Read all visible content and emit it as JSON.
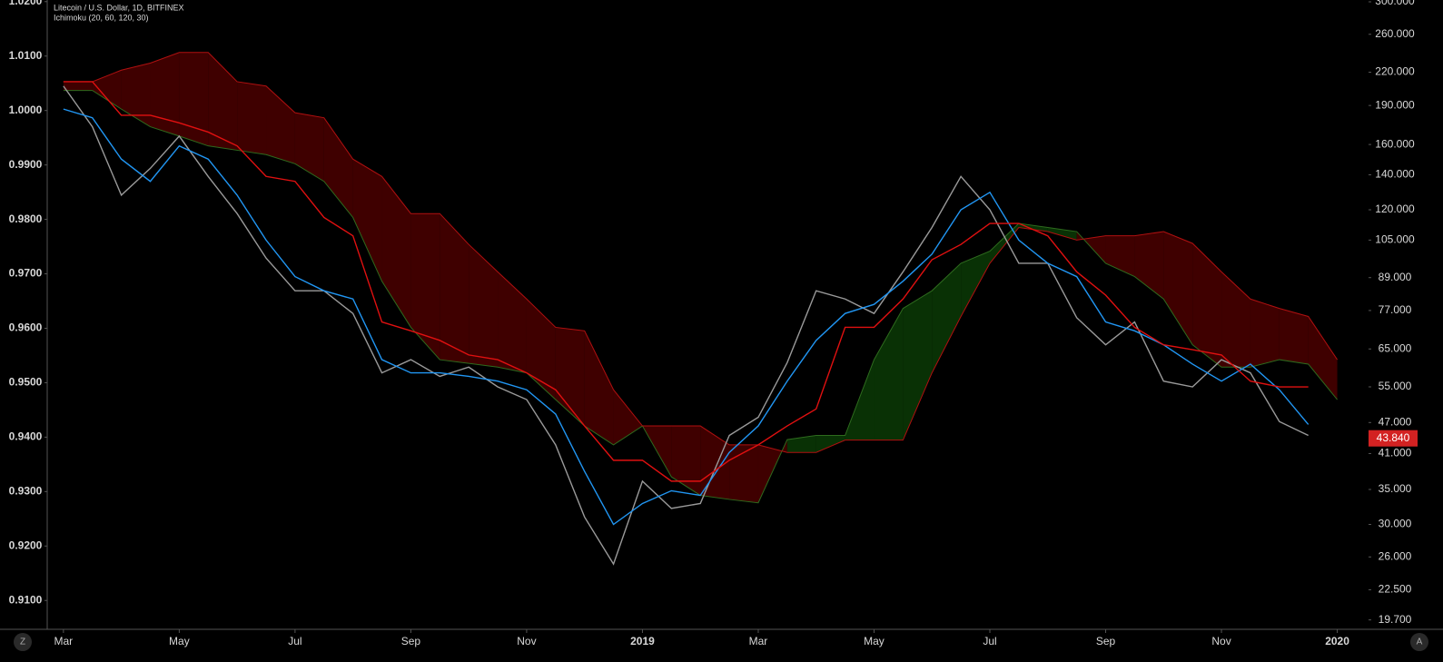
{
  "chart_data": {
    "type": "ichimoku",
    "title": "Litecoin / U.S. Dollar, 1D, BITFINEX",
    "subtitle": "Ichimoku (20, 60, 120, 30)",
    "x": [
      0,
      0.5,
      1,
      1.5,
      2,
      2.5,
      3,
      3.5,
      4,
      4.5,
      5,
      5.5,
      6,
      6.5,
      7,
      7.5,
      8,
      8.5,
      9,
      9.5,
      10,
      10.5,
      11,
      11.5,
      12,
      12.5,
      13,
      13.5,
      14,
      14.5,
      15,
      15.5,
      16,
      16.5,
      17,
      17.5,
      18,
      18.5,
      19,
      19.5,
      20,
      20.5,
      21,
      21.5,
      22
    ],
    "xlim": [
      -0.28,
      22.54
    ],
    "xticks": [
      {
        "value": 0,
        "label": "Mar"
      },
      {
        "value": 2,
        "label": "May"
      },
      {
        "value": 4,
        "label": "Jul"
      },
      {
        "value": 6,
        "label": "Sep"
      },
      {
        "value": 8,
        "label": "Nov"
      },
      {
        "value": 10,
        "label": "2019"
      },
      {
        "value": 12,
        "label": "Mar"
      },
      {
        "value": 14,
        "label": "May"
      },
      {
        "value": 16,
        "label": "Jul"
      },
      {
        "value": 18,
        "label": "Sep"
      },
      {
        "value": 20,
        "label": "Nov"
      },
      {
        "value": 22,
        "label": "2020"
      }
    ],
    "ylim": [
      0.9047,
      1.0203
    ],
    "yticks": [
      {
        "value": 1.02,
        "label": "1.0200"
      },
      {
        "value": 1.01,
        "label": "1.0100"
      },
      {
        "value": 1,
        "label": "1.0000"
      },
      {
        "value": 0.99,
        "label": "0.9900"
      },
      {
        "value": 0.98,
        "label": "0.9800"
      },
      {
        "value": 0.97,
        "label": "0.9700"
      },
      {
        "value": 0.96,
        "label": "0.9600"
      },
      {
        "value": 0.95,
        "label": "0.9500"
      },
      {
        "value": 0.94,
        "label": "0.9400"
      },
      {
        "value": 0.93,
        "label": "0.9300"
      },
      {
        "value": 0.92,
        "label": "0.9200"
      },
      {
        "value": 0.91,
        "label": "0.9100"
      }
    ],
    "y2lim": [
      18.9,
      302.4
    ],
    "y2_log": true,
    "y2ticks": [
      {
        "value": 300,
        "label": "300.000"
      },
      {
        "value": 260,
        "label": "260.000"
      },
      {
        "value": 220,
        "label": "220.000"
      },
      {
        "value": 190,
        "label": "190.000"
      },
      {
        "value": 160,
        "label": "160.000"
      },
      {
        "value": 140,
        "label": "140.000"
      },
      {
        "value": 120,
        "label": "120.000"
      },
      {
        "value": 105,
        "label": "105.000"
      },
      {
        "value": 89,
        "label": "89.000"
      },
      {
        "value": 77,
        "label": "77.000"
      },
      {
        "value": 65,
        "label": "65.000"
      },
      {
        "value": 55,
        "label": "55.000"
      },
      {
        "value": 47,
        "label": "47.000"
      },
      {
        "value": 41,
        "label": "41.000"
      },
      {
        "value": 35,
        "label": "35.000"
      },
      {
        "value": 30,
        "label": "30.000"
      },
      {
        "value": 26,
        "label": "26.000"
      },
      {
        "value": 22.5,
        "label": "22.500"
      },
      {
        "value": 19.7,
        "label": "19.700"
      }
    ],
    "series": [
      {
        "color": "#9a9a9a",
        "axis": "y2",
        "values": [
          207,
          173,
          128,
          144,
          166,
          139,
          118,
          97,
          84,
          84,
          76,
          58.5,
          62,
          57.6,
          60,
          55,
          52,
          42.6,
          31,
          25.2,
          36.3,
          32.2,
          32.9,
          44.4,
          48.1,
          61.2,
          84,
          81,
          76,
          91.3,
          111,
          139,
          120,
          94.8,
          94.8,
          74.6,
          66.2,
          73.2,
          56.4,
          55,
          62,
          58.5,
          47.2,
          44.4,
          null
        ]
      },
      {
        "color": "#2196f3",
        "axis": "y2",
        "values": [
          187,
          180,
          150,
          136,
          159,
          150,
          128,
          105,
          89.4,
          84,
          81,
          62,
          58.5,
          58.5,
          57.6,
          56.4,
          54.3,
          48.8,
          37.9,
          30,
          32.9,
          34.8,
          34.1,
          41.2,
          46.3,
          56.4,
          67.5,
          76,
          79.1,
          87.6,
          98.7,
          120,
          129.6,
          105,
          94.8,
          89.4,
          73.2,
          70.4,
          66.2,
          60.8,
          56.4,
          60.8,
          54.3,
          46.6,
          null
        ]
      },
      {
        "color": "#e01010",
        "axis": "y2",
        "values": [
          211,
          211,
          182,
          182,
          176,
          169,
          159,
          139,
          136,
          116,
          107,
          73.2,
          70.4,
          67.5,
          63.3,
          62,
          58.5,
          54.3,
          46.3,
          39.8,
          39.8,
          36.3,
          36.3,
          39.8,
          42.6,
          46.3,
          49.9,
          71.5,
          71.5,
          81,
          96.3,
          103,
          113,
          113,
          107,
          91.3,
          82.4,
          71.5,
          66.2,
          64.8,
          63.3,
          56.4,
          55,
          55,
          null
        ]
      }
    ],
    "cloud": {
      "span_a": {
        "color": "#2e6b1e",
        "values": [
          203,
          203,
          187,
          173,
          166,
          159,
          156,
          153,
          147,
          136,
          116,
          87.6,
          71.5,
          62,
          61,
          60,
          58.5,
          52,
          46.3,
          42.6,
          46.3,
          37,
          34.1,
          33.5,
          33,
          43.6,
          44.4,
          44.4,
          62,
          77.7,
          84,
          94.8,
          100,
          113,
          111,
          109,
          94.8,
          89.4,
          81,
          66.2,
          60,
          60,
          62,
          60.8,
          52
        ]
      },
      "span_b": {
        "color": "#b01010",
        "values": [
          211,
          211,
          222,
          229,
          240,
          240,
          211,
          207,
          184,
          180,
          150,
          139,
          118,
          118,
          103,
          91.3,
          81,
          71.5,
          70.4,
          54.3,
          46.3,
          46.3,
          46.3,
          42.6,
          42.6,
          41.2,
          41.2,
          43.5,
          43.5,
          43.5,
          58.5,
          75,
          94.8,
          111,
          109,
          105,
          107,
          107,
          109,
          103.5,
          91.3,
          81,
          77.7,
          75,
          62
        ]
      },
      "bull_fill": "#0b3a06",
      "bear_fill": "#4a0000"
    },
    "last_price": {
      "value": 43.84,
      "label": "43.840",
      "color": "#d32222"
    },
    "buttons": [
      "Z",
      "A"
    ]
  }
}
